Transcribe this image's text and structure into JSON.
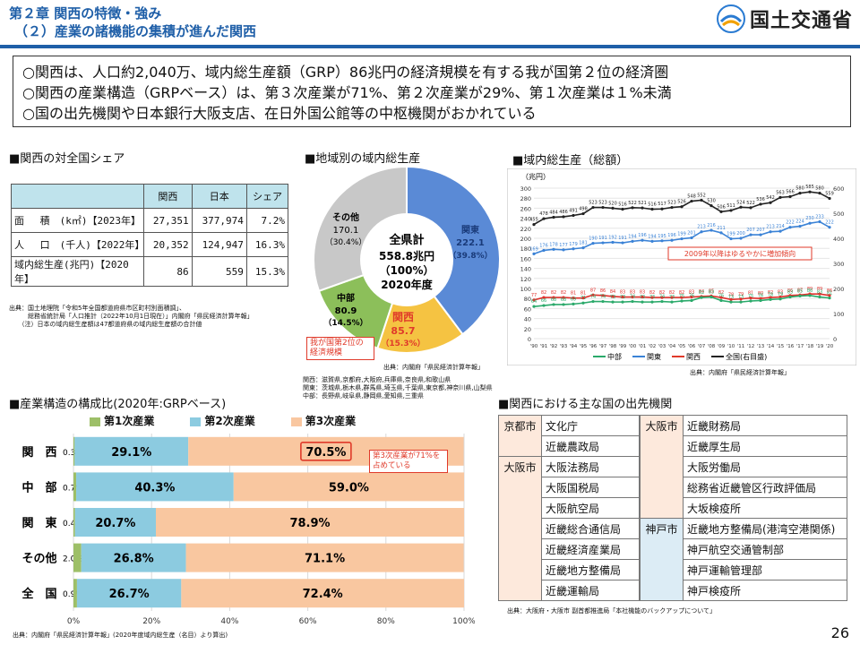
{
  "header": {
    "title1": "第２章 関西の特徴・強み",
    "title2": "（２）産業の諸機能の集積が進んだ関西",
    "logo_text": "国土交通省"
  },
  "summary": [
    "○関西は、人口約2,040万、域内総生産額（GRP）86兆円の経済規模を有する我が国第２位の経済圏",
    "○関西の産業構造（GRPベース）は、第３次産業が71%、第２次産業が29%、第１次産業は１%未満",
    "○国の出先機関や日本銀行大阪支店、在日外国公館等の中枢機関がおかれている"
  ],
  "share": {
    "title": "■関西の対全国シェア",
    "headers": [
      "",
      "関西",
      "日本",
      "シェア"
    ],
    "rows": [
      [
        "面　 積　(k㎡)【2023年】",
        "27,351",
        "377,974",
        "7.2%"
      ],
      [
        "人　 口　(千人)【2022年】",
        "20,352",
        "124,947",
        "16.3%"
      ],
      [
        "域内総生産(兆円)【2020年】",
        "86",
        "559",
        "15.3%"
      ]
    ],
    "notes": [
      "出典：国土地理院「令和5年全国都道府県市区町村別面積調」、",
      "　　　総務省統計局「人口推計（2022年10月1日現在）」内閣府「県民経済計算年報」",
      "　　（注）日本の域内総生産額は47都道府県の域内総生産額の合計値"
    ]
  },
  "pie": {
    "title": "■地域別の域内総生産",
    "center": [
      "全県計",
      "558.8兆円",
      "（100%）",
      "2020年度"
    ],
    "callout": "我が国第2位の経済規模",
    "source": "出典：内閣府「県民経済計算年報」",
    "footnotes": [
      "関西：滋賀県,京都府,大阪府,兵庫県,奈良県,和歌山県",
      "関東：茨城県,栃木県,群馬県,埼玉県,千葉県,東京都,神奈川県,山梨県",
      "中部：長野県,岐阜県,静岡県,愛知県,三重県"
    ],
    "colors": {
      "kanto": "#5a8ad6",
      "kansai": "#f5c342",
      "chubu": "#8cbf5a",
      "other": "#c8c8c8"
    }
  },
  "line": {
    "title": "■域内総生産（総額）",
    "unit": "（兆円）",
    "annotation": "2009年以降はゆるやかに増加傾向",
    "source": "出典：内閣府「県民経済計算年報」",
    "legend": [
      "中部",
      "関東",
      "関西",
      "全国(右目盛)"
    ]
  },
  "structure": {
    "title": "■産業構造の構成比(2020年:GRPベース)",
    "legend": [
      "第1次産業",
      "第2次産業",
      "第3次産業"
    ],
    "callout": "第3次産業が71%を占めている",
    "source": "出典：内閣府「県民経済計算年報」(2020年度域内総生産（名目）より算出)"
  },
  "agencies": {
    "title": "■関西における主な国の出先機関",
    "left": [
      {
        "city": "京都市",
        "items": [
          "文化庁",
          "近畿農政局"
        ]
      },
      {
        "city": "大阪市",
        "items": [
          "大阪法務局",
          "大阪国税局",
          "大阪航空局",
          "近畿総合通信局",
          "近畿経済産業局",
          "近畿地方整備局",
          "近畿運輸局"
        ]
      }
    ],
    "right": [
      {
        "city": "大阪市",
        "items": [
          "近畿財務局",
          "近畿厚生局",
          "大阪労働局",
          "総務省近畿管区行政評価局",
          "大坂検疫所"
        ]
      },
      {
        "city": "神戸市",
        "items": [
          "近畿地方整備局(港湾空港関係)",
          "神戸航空交通管制部",
          "神戸運輸管理部",
          "神戸検疫所"
        ]
      }
    ],
    "source": "出典：大阪府・大阪市 副首都推進局「本社機能のバックアップについて」"
  },
  "page_number": "26",
  "chart_data": [
    {
      "type": "pie",
      "title": "",
      "categories": [
        "関東",
        "関西",
        "中部",
        "その他"
      ],
      "values": [
        222.1,
        85.7,
        80.9,
        170.1
      ],
      "percent_labels": [
        "（39.8%）",
        "（15.3%）",
        "（14.5%）",
        "（30.4%）"
      ],
      "value_labels": [
        "222.1",
        "85.7",
        "80.9",
        "170.1"
      ]
    },
    {
      "type": "line",
      "ylabel": "（兆円）",
      "ylim_left": [
        0,
        300
      ],
      "ylim_right": [
        0,
        600
      ],
      "y_ticks_left": [
        0,
        20,
        40,
        60,
        80,
        100,
        120,
        140,
        160,
        180,
        200,
        220,
        240,
        260,
        280,
        300
      ],
      "y_ticks_right": [
        0,
        100,
        200,
        300,
        400,
        500,
        600
      ],
      "categories": [
        "'90",
        "'91",
        "'92",
        "'93",
        "'94",
        "'95",
        "'96",
        "'97",
        "'98",
        "'99",
        "'00",
        "'01",
        "'02",
        "'03",
        "'04",
        "'05",
        "'06",
        "'07",
        "'08",
        "'09",
        "'10",
        "'11",
        "'12",
        "'13",
        "'14",
        "'15",
        "'16",
        "'17",
        "'18",
        "'19",
        "'20"
      ],
      "series": [
        {
          "name": "全国(右目盛)",
          "axis": "right",
          "values": [
            455,
            478,
            484,
            486,
            491,
            498,
            523,
            523,
            520,
            516,
            522,
            521,
            516,
            517,
            523,
            526,
            548,
            552,
            530,
            506,
            511,
            524,
            522,
            536,
            542,
            563,
            566,
            580,
            585,
            580,
            559
          ],
          "color": "#222222"
        },
        {
          "name": "関東",
          "axis": "left",
          "values": [
            169,
            176,
            178,
            177,
            179,
            181,
            190,
            191,
            192,
            191,
            194,
            196,
            194,
            195,
            196,
            199,
            201,
            213,
            216,
            211,
            199,
            200,
            207,
            207,
            213,
            214,
            222,
            224,
            230,
            233,
            222
          ],
          "color": "#3a82d6"
        },
        {
          "name": "関西",
          "axis": "left",
          "values": [
            77,
            82,
            82,
            82,
            81,
            81,
            87,
            86,
            84,
            83,
            83,
            83,
            82,
            82,
            82,
            82,
            83,
            84,
            85,
            82,
            78,
            79,
            81,
            80,
            82,
            83,
            86,
            87,
            89,
            89,
            86
          ],
          "color": "#e0302c"
        },
        {
          "name": "中部",
          "axis": "left",
          "values": [
            64,
            66,
            68,
            68,
            69,
            71,
            74,
            74,
            73,
            73,
            74,
            73,
            73,
            74,
            73,
            75,
            76,
            82,
            83,
            76,
            73,
            73,
            75,
            76,
            78,
            79,
            83,
            85,
            86,
            83,
            81
          ],
          "color": "#2aa96a"
        }
      ]
    },
    {
      "type": "bar",
      "stacked": true,
      "orientation": "horizontal",
      "categories": [
        "関　西",
        "中　部",
        "関　東",
        "その他",
        "全　国"
      ],
      "series": [
        {
          "name": "第1次産業",
          "values": [
            0.3,
            0.7,
            0.4,
            2.0,
            0.9
          ],
          "labels": [
            "0.3%",
            "0.7%",
            "0.4%",
            "2.0%",
            "0.9%"
          ],
          "color": "#9dbf68"
        },
        {
          "name": "第2次産業",
          "values": [
            29.1,
            40.3,
            20.7,
            26.8,
            26.7
          ],
          "labels": [
            "29.1%",
            "40.3%",
            "20.7%",
            "26.8%",
            "26.7%"
          ],
          "color": "#8ccbe0"
        },
        {
          "name": "第3次産業",
          "values": [
            70.5,
            59.0,
            78.9,
            71.1,
            72.4
          ],
          "labels": [
            "70.5%",
            "59.0%",
            "78.9%",
            "71.1%",
            "72.4%"
          ],
          "color": "#f9c7a0"
        }
      ],
      "x_ticks": [
        "0%",
        "20%",
        "40%",
        "60%",
        "80%",
        "100%"
      ],
      "xlim": [
        0,
        100
      ]
    }
  ]
}
